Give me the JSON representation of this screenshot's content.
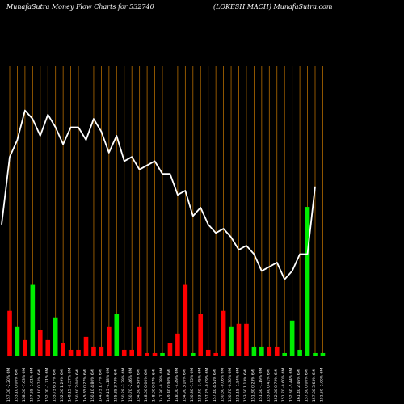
{
  "chart_data": {
    "type": "bar",
    "title_left": "MunafaSutra  Money Flow  Charts for 532740",
    "title_right": "(LOKESH MACH) MunafaSutra.com",
    "colors": {
      "background": "#000000",
      "grid": "#b36b00",
      "line": "#ffffff",
      "up": "#00ee00",
      "down": "#ff0000"
    },
    "categories": [
      "157.00 -2.20% 6M",
      "153.10 0.00% 6M",
      "158.00 -7.63% 6M",
      "157.65 -2.91% 6M",
      "154.10 0.74% 6M",
      "152.00 -1.71% 6M",
      "155.75 6.37% 6M",
      "152.00 1.29% 6M",
      "148.15 -2.57% 6M",
      "150.40 2.00% 6M",
      "145.35 0.27% 6M",
      "150.10 4.80% 6M",
      "144.75 1.77% 6M",
      "149.15 -4.18% 6M",
      "155.85 3.73% 6M",
      "150.29 -3.29% 6M",
      "150.70 -2.46% 6M",
      "154.50 4.58% 6M",
      "148.00 0.00% 6M",
      "148.00 0.07% 6M",
      "147.90 -0.78% 6M",
      "149.40 0.90% 6M",
      "148.00 -4.49% 6M",
      "154.90 3.10% 6M",
      "150.30 -1.75% 6M",
      "153.40 -3.45% 6M",
      "157.25 -0.09% 6M",
      "157.40 4.54% 6M",
      "150.60 -0.06% 6M",
      "150.70 -0.30% 6M",
      "151.15 -1.54% 6M",
      "153.50 1.13% 6M",
      "151.80 0.23% 6M",
      "151.50 -1.19% 6M",
      "153.40 0.41% 6M",
      "152.80 0.72% 6M",
      "151.70 -0.60% 6M",
      "152.50 -5.44% 6M",
      "161.40 2.46% 6M",
      "157.50 0.00% 6M",
      "157.00 3.63% 6M",
      "151.50 -2.00% 6M"
    ],
    "price": [
      171,
      187,
      191,
      198,
      196,
      192,
      197,
      194,
      190,
      194,
      194,
      191,
      196,
      193,
      188,
      192,
      186,
      187,
      184,
      185,
      186,
      183,
      183,
      178,
      179,
      173,
      175,
      171,
      169,
      170,
      168,
      165,
      166,
      164,
      160,
      161,
      162,
      158,
      160,
      164,
      164,
      180
    ],
    "price_ylim": [
      140,
      205
    ],
    "volume": [
      14,
      9,
      5,
      22,
      8,
      5,
      12,
      4,
      2,
      2,
      6,
      3,
      3,
      9,
      13,
      2,
      2,
      9,
      1,
      1,
      1,
      4,
      7,
      22,
      1,
      13,
      2,
      1,
      14,
      9,
      10,
      10,
      3,
      3,
      3,
      3,
      1,
      11,
      2,
      46,
      1,
      1
    ],
    "direction": [
      "down",
      "up",
      "down",
      "up",
      "down",
      "down",
      "up",
      "down",
      "down",
      "down",
      "down",
      "down",
      "down",
      "down",
      "up",
      "down",
      "down",
      "down",
      "down",
      "down",
      "up",
      "down",
      "down",
      "down",
      "up",
      "down",
      "down",
      "down",
      "down",
      "up",
      "down",
      "down",
      "up",
      "up",
      "down",
      "down",
      "up",
      "up",
      "up",
      "up",
      "up",
      "up"
    ],
    "volume_ylim": [
      0,
      50
    ],
    "xlabel": "",
    "ylabel": "",
    "grid": true
  }
}
